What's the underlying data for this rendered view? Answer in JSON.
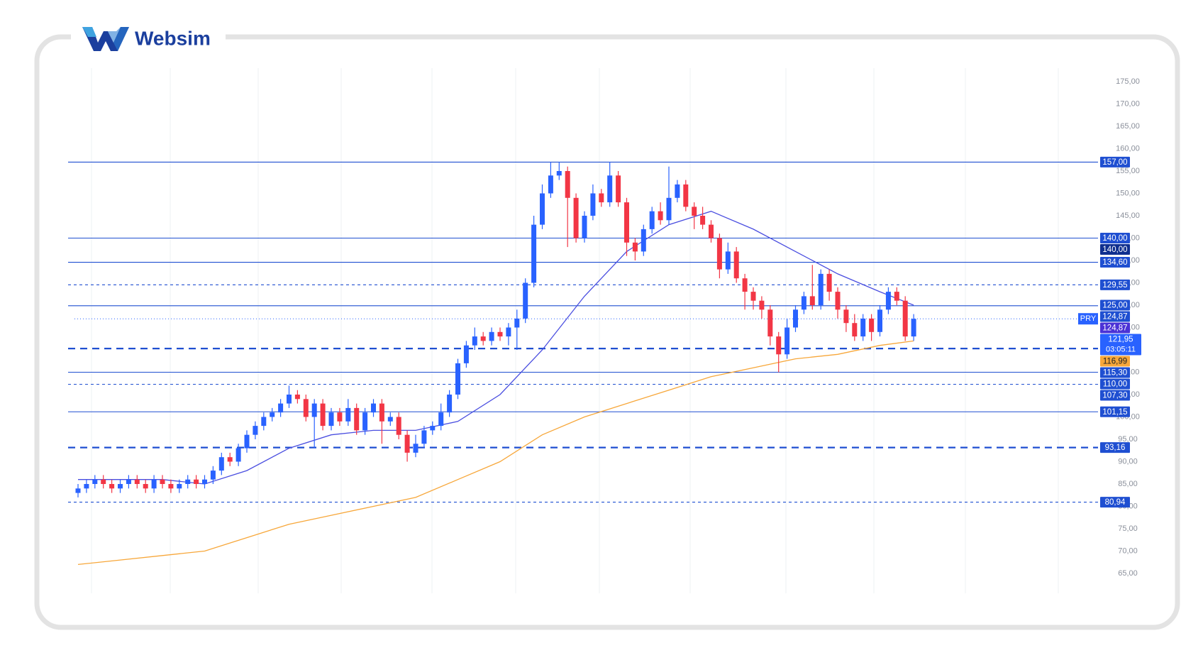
{
  "brand": "Websim",
  "chart_data": {
    "type": "candlestick",
    "open": [
      83,
      84,
      85,
      86,
      85,
      84,
      85,
      86,
      85,
      84,
      86,
      85,
      84,
      85,
      86,
      85,
      86,
      88,
      91,
      90,
      93,
      96,
      98,
      100,
      101,
      103,
      105,
      104,
      100,
      103,
      98,
      101,
      99,
      102,
      97,
      101,
      103,
      99,
      100,
      96,
      92,
      94,
      97,
      98,
      101,
      105,
      112,
      116,
      118,
      117,
      119,
      118,
      120,
      122,
      130,
      143,
      150,
      154,
      155,
      149,
      140,
      145,
      150,
      148,
      154,
      148,
      139,
      137,
      142,
      146,
      144,
      149,
      152,
      147,
      145,
      143,
      140,
      133,
      137,
      131,
      128,
      126,
      124,
      118,
      114,
      120,
      124,
      127,
      125,
      132,
      128,
      124,
      121,
      118,
      122,
      119,
      124,
      128,
      126,
      118
    ],
    "high": [
      85,
      86,
      87,
      87,
      86,
      86,
      87,
      87,
      86,
      87,
      87,
      86,
      86,
      87,
      87,
      87,
      89,
      92,
      92,
      94,
      97,
      99,
      101,
      102,
      104,
      107,
      106,
      105,
      104,
      104,
      102,
      102,
      104,
      103,
      102,
      104,
      104,
      101,
      101,
      97,
      96,
      98,
      99,
      103,
      106,
      113,
      117,
      120,
      119,
      120,
      120,
      121,
      124,
      131,
      145,
      152,
      157,
      157,
      156,
      150,
      146,
      152,
      151,
      157,
      155,
      149,
      140,
      143,
      147,
      148,
      156,
      153,
      153,
      148,
      147,
      144,
      141,
      139,
      138,
      132,
      129,
      127,
      125,
      119,
      122,
      125,
      128,
      134,
      133,
      133,
      129,
      125,
      123,
      123,
      123,
      125,
      129,
      129,
      127,
      123
    ],
    "low": [
      82,
      83,
      84,
      84,
      83,
      83,
      84,
      84,
      83,
      83,
      84,
      83,
      83,
      84,
      84,
      84,
      85,
      87,
      89,
      89,
      92,
      95,
      97,
      99,
      100,
      102,
      103,
      99,
      93,
      97,
      97,
      98,
      98,
      96,
      96,
      100,
      94,
      98,
      95,
      90,
      91,
      93,
      96,
      97,
      100,
      104,
      111,
      115,
      116,
      116,
      117,
      116,
      115,
      121,
      129,
      142,
      149,
      153,
      138,
      139,
      139,
      144,
      147,
      147,
      147,
      136,
      135,
      136,
      141,
      143,
      143,
      148,
      146,
      142,
      142,
      139,
      131,
      132,
      130,
      124,
      124,
      122,
      116,
      110,
      113,
      119,
      123,
      124,
      124,
      126,
      122,
      119,
      117,
      117,
      117,
      118,
      123,
      125,
      117,
      117
    ],
    "close": [
      84,
      85,
      86,
      85,
      84,
      85,
      86,
      85,
      84,
      86,
      85,
      84,
      85,
      86,
      85,
      86,
      88,
      91,
      90,
      93,
      96,
      98,
      100,
      101,
      103,
      105,
      104,
      100,
      103,
      98,
      101,
      99,
      102,
      97,
      101,
      103,
      99,
      100,
      96,
      92,
      94,
      97,
      98,
      101,
      105,
      112,
      116,
      118,
      117,
      119,
      118,
      120,
      122,
      130,
      143,
      150,
      154,
      155,
      149,
      140,
      145,
      150,
      148,
      154,
      148,
      139,
      137,
      142,
      146,
      144,
      149,
      152,
      147,
      145,
      143,
      140,
      133,
      137,
      131,
      128,
      126,
      124,
      118,
      114,
      120,
      124,
      127,
      125,
      132,
      128,
      124,
      121,
      118,
      122,
      119,
      124,
      128,
      126,
      118,
      121.95
    ],
    "up_color": "#2962ff",
    "down_color": "#f23645",
    "ma_lines": [
      {
        "color": "#4a4ee0",
        "x": [
          0,
          5,
          10,
          15,
          20,
          25,
          30,
          35,
          40,
          45,
          50,
          55,
          60,
          65,
          70,
          75,
          80,
          85,
          90,
          95,
          99
        ],
        "values": [
          86,
          86,
          86,
          85,
          88,
          93,
          96,
          97,
          97,
          99,
          105,
          115,
          127,
          137,
          143,
          146,
          142,
          137,
          132,
          128,
          125
        ]
      },
      {
        "color": "#f7a73a",
        "x": [
          0,
          5,
          10,
          15,
          20,
          25,
          30,
          35,
          40,
          45,
          50,
          55,
          60,
          65,
          70,
          75,
          80,
          85,
          90,
          95,
          99
        ],
        "values": [
          67,
          68,
          69,
          70,
          73,
          76,
          78,
          80,
          82,
          86,
          90,
          96,
          100,
          103,
          106,
          109,
          111,
          113,
          114,
          116,
          117
        ]
      }
    ],
    "ylim": [
      62,
      178
    ],
    "yticks": [
      {
        "value": 65,
        "label": "65,00"
      },
      {
        "value": 70,
        "label": "70,00"
      },
      {
        "value": 75,
        "label": "75,00"
      },
      {
        "value": 80,
        "label": "80,00"
      },
      {
        "value": 85,
        "label": "85,00"
      },
      {
        "value": 90,
        "label": "90,00"
      },
      {
        "value": 95,
        "label": "95,00"
      },
      {
        "value": 100,
        "label": "100,00"
      },
      {
        "value": 105,
        "label": "105,00"
      },
      {
        "value": 110,
        "label": "110,00"
      },
      {
        "value": 115,
        "label": "115,00"
      },
      {
        "value": 120,
        "label": "120,00"
      },
      {
        "value": 125,
        "label": "125,00"
      },
      {
        "value": 130,
        "label": "130,00"
      },
      {
        "value": 135,
        "label": "135,00"
      },
      {
        "value": 140,
        "label": "140,00"
      },
      {
        "value": 145,
        "label": "145,00"
      },
      {
        "value": 150,
        "label": "150,00"
      },
      {
        "value": 155,
        "label": "155,00"
      },
      {
        "value": 160,
        "label": "160,00"
      },
      {
        "value": 165,
        "label": "165,00"
      },
      {
        "value": 170,
        "label": "170,00"
      },
      {
        "value": 175,
        "label": "175,00"
      }
    ],
    "grid": true,
    "levels": [
      {
        "value": 157,
        "label": "157,00",
        "style": "solid"
      },
      {
        "value": 140,
        "label": "140,00",
        "style": "solid"
      },
      {
        "value": 134.6,
        "label": "134,60",
        "style": "solid"
      },
      {
        "value": 129.55,
        "label": "129,55",
        "style": "dashed"
      },
      {
        "value": 124.87,
        "label": "124,87",
        "style": "solid"
      },
      {
        "value": 115.3,
        "label": "115,30",
        "style": "thick-dashed"
      },
      {
        "value": 110,
        "label": "110,00",
        "style": "solid"
      },
      {
        "value": 107.3,
        "label": "107,30",
        "style": "dashed"
      },
      {
        "value": 101.15,
        "label": "101,15",
        "style": "solid"
      },
      {
        "value": 93.16,
        "label": "93,16",
        "style": "thick-dashed"
      },
      {
        "value": 80.94,
        "label": "80,94",
        "style": "dashed"
      }
    ],
    "level_color": "#1f4fd1",
    "price_tags": [
      {
        "value": 140,
        "label": "140,00",
        "color": "#0f2f8f"
      },
      {
        "value": 125,
        "label": "125,00",
        "color": "#1f4fd1"
      },
      {
        "value": 124.87,
        "label": "124,87",
        "color": "#4b32d6"
      },
      {
        "value": 116.99,
        "label": "116,99",
        "color": "#f7a73a"
      }
    ],
    "current": {
      "value": 121.95,
      "label": "121,95",
      "countdown": "03:05:11",
      "symbol": "PRY",
      "color": "#2962ff"
    }
  }
}
